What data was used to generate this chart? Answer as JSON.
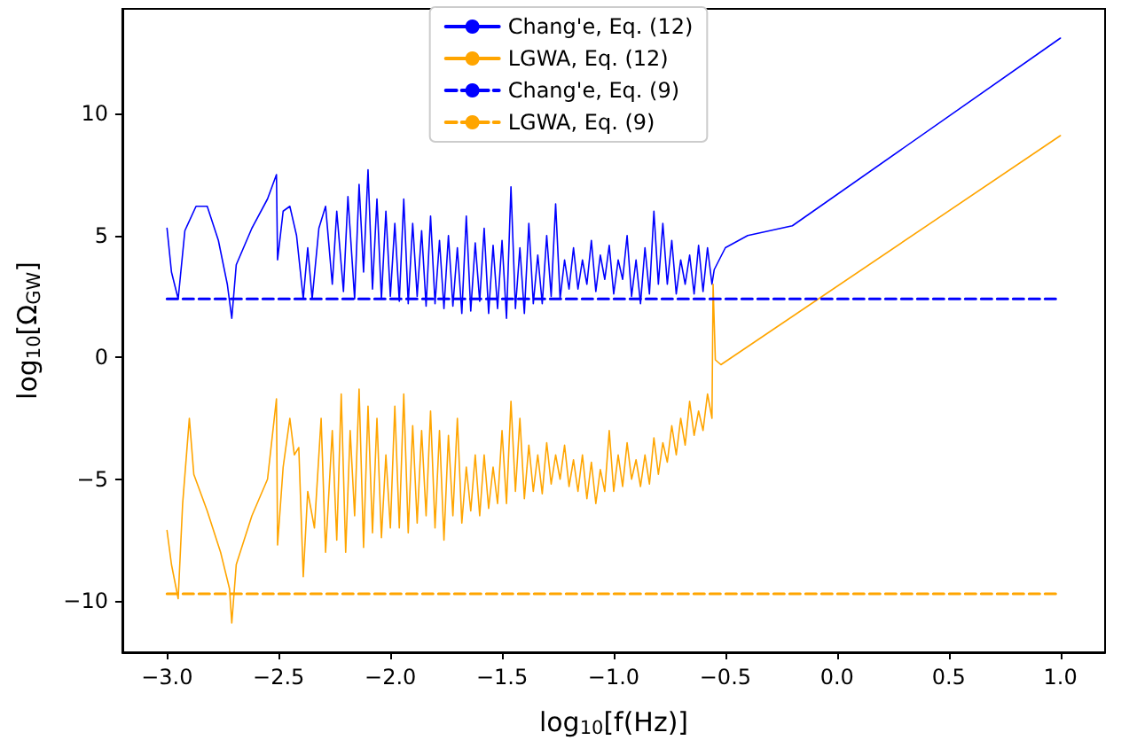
{
  "chart_data": {
    "type": "line",
    "xlabel": "log$_{10}$[f(Hz)]",
    "ylabel": "log$_{10}$[Ω$_{GW}$]",
    "legend": "top",
    "grid": false,
    "marker": "none",
    "xlim": [
      -3.2,
      1.2
    ],
    "ylim": [
      -12.1,
      14.3
    ],
    "xticks": [
      {
        "value": -3.0,
        "label": "−3.0"
      },
      {
        "value": -2.5,
        "label": "−2.5"
      },
      {
        "value": -2.0,
        "label": "−2.0"
      },
      {
        "value": -1.5,
        "label": "−1.5"
      },
      {
        "value": -1.0,
        "label": "−1.0"
      },
      {
        "value": -0.5,
        "label": "−0.5"
      },
      {
        "value": 0,
        "label": "0.0"
      },
      {
        "value": 0.5,
        "label": "0.5"
      },
      {
        "value": 1.0,
        "label": "1.0"
      }
    ],
    "yticks": [
      {
        "value": -10,
        "label": "−10"
      },
      {
        "value": -5,
        "label": "−5"
      },
      0,
      5,
      10
    ],
    "series": [
      {
        "name": "Chang'e, Eq. (12)",
        "color": "#0000ff",
        "line_style": "solid",
        "x": [
          -3.0,
          -2.98,
          -2.95,
          -2.92,
          -2.87,
          -2.82,
          -2.77,
          -2.73,
          -2.71,
          -2.69,
          -2.62,
          -2.55,
          -2.51,
          -2.505,
          -2.48,
          -2.45,
          -2.42,
          -2.39,
          -2.37,
          -2.35,
          -2.32,
          -2.29,
          -2.26,
          -2.24,
          -2.21,
          -2.19,
          -2.16,
          -2.14,
          -2.12,
          -2.1,
          -2.08,
          -2.06,
          -2.04,
          -2.02,
          -2.0,
          -1.98,
          -1.96,
          -1.94,
          -1.92,
          -1.9,
          -1.88,
          -1.86,
          -1.84,
          -1.82,
          -1.8,
          -1.78,
          -1.76,
          -1.74,
          -1.72,
          -1.7,
          -1.68,
          -1.66,
          -1.64,
          -1.62,
          -1.6,
          -1.58,
          -1.56,
          -1.54,
          -1.52,
          -1.5,
          -1.48,
          -1.46,
          -1.44,
          -1.42,
          -1.4,
          -1.38,
          -1.36,
          -1.34,
          -1.32,
          -1.3,
          -1.28,
          -1.26,
          -1.24,
          -1.22,
          -1.2,
          -1.18,
          -1.16,
          -1.14,
          -1.12,
          -1.1,
          -1.08,
          -1.06,
          -1.04,
          -1.02,
          -1.0,
          -0.98,
          -0.96,
          -0.94,
          -0.92,
          -0.9,
          -0.88,
          -0.86,
          -0.84,
          -0.82,
          -0.8,
          -0.78,
          -0.76,
          -0.74,
          -0.72,
          -0.7,
          -0.68,
          -0.66,
          -0.64,
          -0.62,
          -0.6,
          -0.58,
          -0.56,
          -0.55,
          -0.5,
          -0.4,
          -0.3,
          -0.2,
          1.0
        ],
        "values": [
          5.3,
          3.5,
          2.4,
          5.2,
          6.2,
          6.2,
          4.8,
          3.0,
          1.6,
          3.8,
          5.3,
          6.5,
          7.5,
          4.0,
          6.0,
          6.2,
          5.0,
          2.4,
          4.5,
          2.4,
          5.3,
          6.2,
          3.0,
          6.0,
          2.7,
          6.6,
          2.4,
          7.1,
          3.5,
          7.7,
          2.8,
          6.5,
          2.4,
          6.0,
          2.5,
          5.5,
          2.3,
          6.5,
          2.2,
          5.5,
          2.5,
          5.2,
          2.1,
          5.8,
          2.2,
          4.8,
          2.0,
          5.0,
          2.1,
          4.5,
          1.8,
          5.8,
          1.9,
          4.7,
          2.3,
          5.3,
          1.8,
          4.6,
          2.0,
          4.8,
          1.6,
          7.0,
          2.0,
          4.5,
          1.8,
          5.5,
          2.2,
          4.2,
          2.2,
          5.0,
          2.5,
          6.3,
          2.4,
          4.0,
          2.8,
          4.5,
          2.8,
          4.0,
          3.0,
          4.8,
          2.7,
          4.2,
          3.2,
          4.6,
          2.6,
          4.0,
          3.2,
          5.0,
          2.5,
          4.0,
          2.2,
          4.5,
          2.6,
          6.0,
          3.0,
          5.5,
          3.0,
          4.8,
          2.6,
          4.0,
          3.0,
          4.2,
          2.6,
          4.6,
          2.7,
          4.5,
          3.0,
          3.6,
          4.5,
          5.0,
          5.2,
          5.4,
          13.1
        ]
      },
      {
        "name": "LGWA, Eq. (12)",
        "color": "#ffa500",
        "line_style": "solid",
        "x": [
          -3.0,
          -2.98,
          -2.95,
          -2.93,
          -2.9,
          -2.88,
          -2.82,
          -2.76,
          -2.72,
          -2.71,
          -2.69,
          -2.62,
          -2.55,
          -2.51,
          -2.505,
          -2.48,
          -2.45,
          -2.43,
          -2.41,
          -2.39,
          -2.37,
          -2.34,
          -2.31,
          -2.29,
          -2.26,
          -2.24,
          -2.22,
          -2.2,
          -2.18,
          -2.16,
          -2.14,
          -2.12,
          -2.1,
          -2.08,
          -2.06,
          -2.04,
          -2.02,
          -2.0,
          -1.98,
          -1.96,
          -1.94,
          -1.92,
          -1.9,
          -1.88,
          -1.86,
          -1.84,
          -1.82,
          -1.8,
          -1.78,
          -1.76,
          -1.74,
          -1.72,
          -1.7,
          -1.68,
          -1.66,
          -1.64,
          -1.62,
          -1.6,
          -1.58,
          -1.56,
          -1.54,
          -1.52,
          -1.5,
          -1.48,
          -1.46,
          -1.44,
          -1.42,
          -1.4,
          -1.38,
          -1.36,
          -1.34,
          -1.32,
          -1.3,
          -1.28,
          -1.26,
          -1.24,
          -1.22,
          -1.2,
          -1.18,
          -1.16,
          -1.14,
          -1.12,
          -1.1,
          -1.08,
          -1.06,
          -1.04,
          -1.02,
          -1.0,
          -0.98,
          -0.96,
          -0.94,
          -0.92,
          -0.9,
          -0.88,
          -0.86,
          -0.84,
          -0.82,
          -0.8,
          -0.78,
          -0.76,
          -0.74,
          -0.72,
          -0.7,
          -0.68,
          -0.66,
          -0.64,
          -0.62,
          -0.6,
          -0.58,
          -0.56,
          -0.555,
          -0.545,
          -0.52,
          1.0
        ],
        "values": [
          -7.1,
          -8.5,
          -9.9,
          -6.0,
          -2.5,
          -4.8,
          -6.3,
          -8.0,
          -9.5,
          -10.9,
          -8.5,
          -6.5,
          -5.0,
          -1.7,
          -7.7,
          -4.5,
          -2.5,
          -4.0,
          -3.7,
          -9.0,
          -5.5,
          -7.0,
          -2.5,
          -8.0,
          -3.0,
          -7.5,
          -1.5,
          -8.0,
          -3.0,
          -6.5,
          -1.3,
          -7.8,
          -2.0,
          -7.2,
          -2.5,
          -7.4,
          -4.0,
          -7.0,
          -2.0,
          -7.0,
          -1.5,
          -7.2,
          -2.8,
          -6.8,
          -3.0,
          -6.5,
          -2.2,
          -7.0,
          -3.0,
          -7.5,
          -3.2,
          -6.5,
          -2.5,
          -6.8,
          -4.5,
          -6.3,
          -4.0,
          -6.5,
          -4.0,
          -6.2,
          -4.5,
          -6.0,
          -3.0,
          -6.0,
          -1.8,
          -5.5,
          -2.5,
          -5.8,
          -3.6,
          -5.5,
          -4.0,
          -5.6,
          -3.5,
          -5.2,
          -4.0,
          -5.0,
          -3.6,
          -5.3,
          -4.2,
          -5.5,
          -4.0,
          -5.8,
          -4.3,
          -6.0,
          -4.6,
          -5.5,
          -3.0,
          -5.5,
          -4.0,
          -5.3,
          -3.5,
          -5.0,
          -4.2,
          -5.3,
          -4.0,
          -5.2,
          -3.3,
          -4.8,
          -3.5,
          -4.3,
          -2.8,
          -4.0,
          -2.5,
          -3.6,
          -1.8,
          -3.2,
          -2.2,
          -3.0,
          -1.5,
          -2.5,
          3.0,
          -0.1,
          -0.3,
          9.1
        ]
      },
      {
        "name": "Chang'e, Eq. (9)",
        "color": "#0000ff",
        "line_style": "dashed",
        "x": [
          -3.0,
          1.0
        ],
        "values": [
          2.4,
          2.4
        ]
      },
      {
        "name": "LGWA, Eq. (9)",
        "color": "#ffa500",
        "line_style": "dashed",
        "x": [
          -3.0,
          1.0
        ],
        "values": [
          -9.7,
          -9.7
        ]
      }
    ]
  }
}
